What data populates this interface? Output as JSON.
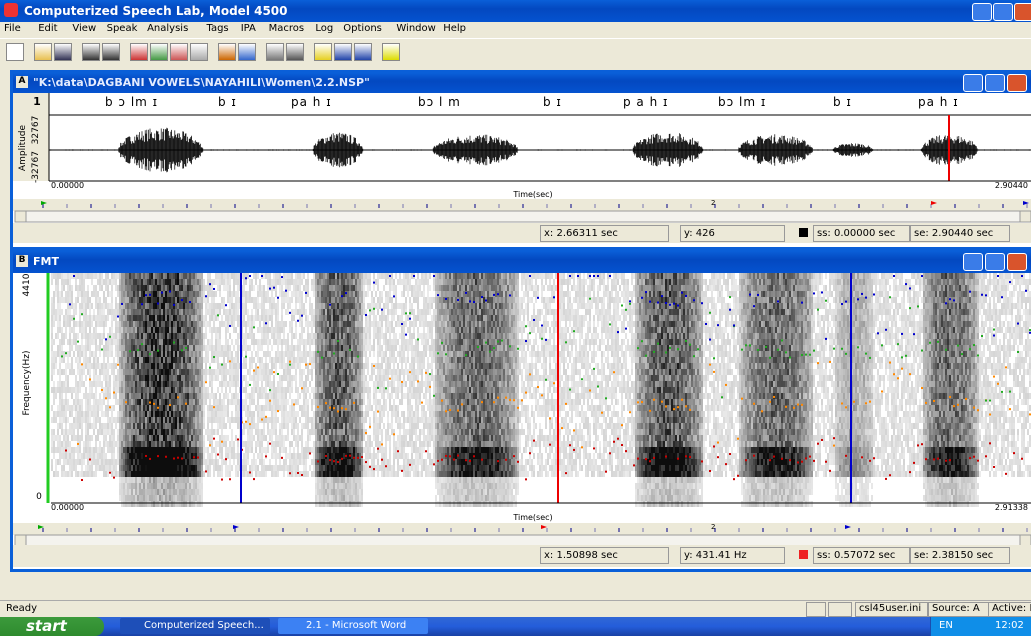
{
  "app_title": "Computerized Speech Lab, Model 4500",
  "menu": [
    "File",
    "Edit",
    "View",
    "Speak",
    "Analysis",
    "Tags",
    "IPA",
    "Macros",
    "Log",
    "Options",
    "Window",
    "Help"
  ],
  "window_a": {
    "letter": "A",
    "title": "\"K:\\data\\DAGBANI VOWELS\\NAYAHILI\\Women\\2.2.NSP\"",
    "channel": "1",
    "transcription": [
      "b ɔ lm ɪ",
      "b ɪ",
      "pa  h  ɪ",
      "bɔ l  m",
      "b ɪ",
      "p a h ɪ",
      "bɔ lm  ɪ",
      "b ɪ",
      "pa h  ɪ"
    ],
    "y_label": "Amplitude",
    "y_max": "32767",
    "y_min": "-32767",
    "x_start": "0.00000",
    "x_label": "Time(sec)",
    "x_end": "2.90440",
    "ruler_mark": "2",
    "status": {
      "x": "x: 2.66311 sec",
      "y": "y: 426",
      "ss": "ss: 0.00000 sec",
      "se": "se: 2.90440 sec"
    }
  },
  "window_b": {
    "letter": "B",
    "title": "FMT",
    "y_label": "Frequency(Hz)",
    "y_max": "4410",
    "y_min": "0",
    "x_start": "0.00000",
    "x_label": "Time(sec)",
    "x_end": "2.91338",
    "ruler_mark": "2",
    "status": {
      "x": "x: 1.50898 sec",
      "y": "y: 431.41 Hz",
      "ss": "ss: 0.57072 sec",
      "se": "se: 2.38150 sec"
    }
  },
  "status_bar": {
    "left": "Ready",
    "ini": "csl45user.ini",
    "source": "Source: A",
    "active": "Active: E"
  },
  "taskbar": {
    "start": "start",
    "tasks": [
      "Computerized Speech...",
      "2.1 - Microsoft Word"
    ],
    "lang": "EN",
    "clock": "12:02"
  }
}
